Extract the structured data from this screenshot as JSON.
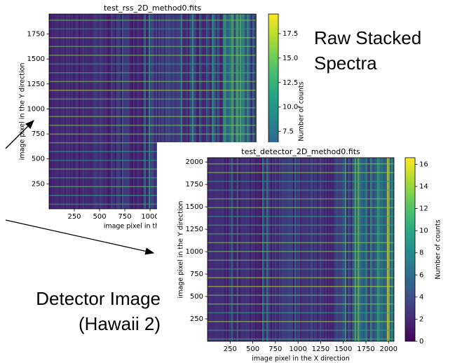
{
  "chart_data": [
    {
      "type": "heatmap",
      "title": "test_rss_2D_method0.fits",
      "xlabel": "image pixel in the X direction",
      "ylabel": "image pixel in the Y direction",
      "colorbar_label": "Number of counts",
      "colormap": "viridis",
      "xlim": [
        0,
        2048
      ],
      "ylim": [
        0,
        1950
      ],
      "xticks": [
        250,
        500,
        750,
        1000
      ],
      "yticks": [
        250,
        500,
        750,
        1000,
        1250,
        1500,
        1750
      ],
      "clim": [
        -0.4,
        19.5
      ],
      "cticks": [
        7.5,
        {
          "value": 10,
          "label": "10.0"
        },
        12.5,
        {
          "value": 15,
          "label": "15.0"
        },
        17.5
      ]
    },
    {
      "type": "heatmap",
      "title": "test_detector_2D_method0.fits",
      "xlabel": "image pixel in the X direction",
      "ylabel": "image pixel in the Y direction",
      "colorbar_label": "Number of counts",
      "colormap": "viridis",
      "xlim": [
        0,
        2060
      ],
      "ylim": [
        0,
        2048
      ],
      "xticks": [
        250,
        500,
        750,
        1000,
        1250,
        1500,
        1750,
        2000
      ],
      "yticks": [
        250,
        500,
        750,
        1000,
        1250,
        1500,
        1750,
        2000
      ],
      "clim": [
        0,
        16.6
      ],
      "cticks": [
        0,
        2,
        4,
        6,
        8,
        10,
        12,
        14,
        16
      ]
    }
  ],
  "annotations": [
    [
      "Raw Stacked",
      "Spectra"
    ],
    [
      "Detector Image",
      "(Hawaii 2)"
    ]
  ]
}
